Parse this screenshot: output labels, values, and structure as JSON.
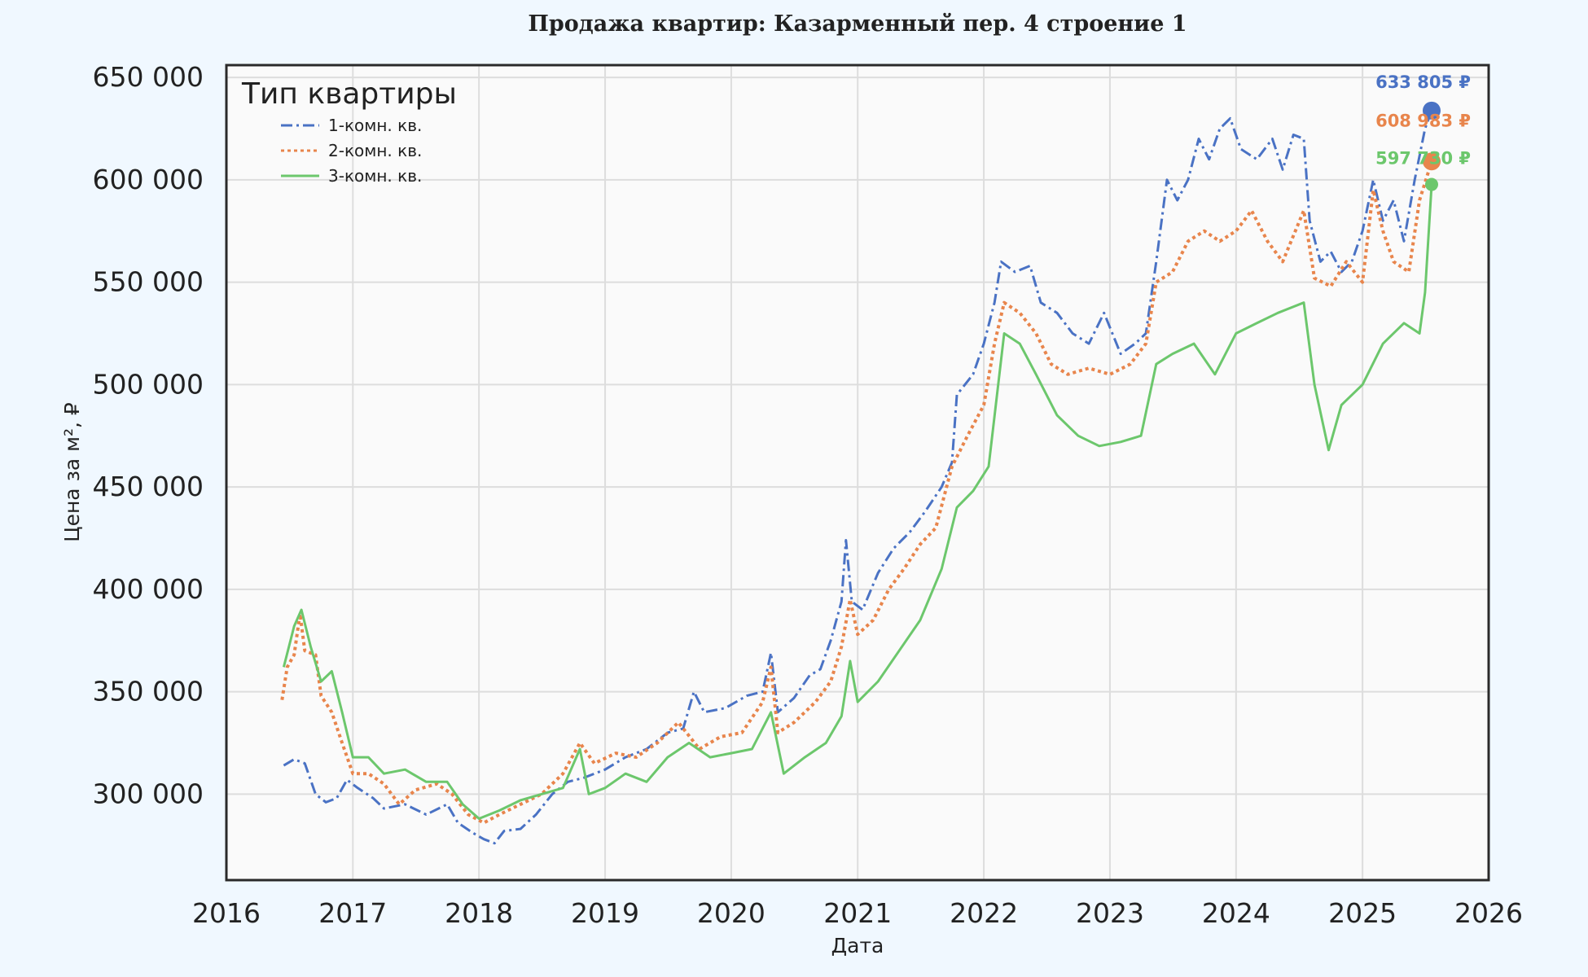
{
  "chart_data": {
    "type": "line",
    "title": "Продажа квартир: Казарменный пер. 4 строение 1",
    "xlabel": "Дата",
    "ylabel": "Цена за м², ₽",
    "x_ticks": [
      "2016",
      "2017",
      "2018",
      "2019",
      "2020",
      "2021",
      "2022",
      "2023",
      "2024",
      "2025",
      "2026"
    ],
    "y_ticks": [
      "300 000",
      "350 000",
      "400 000",
      "450 000",
      "500 000",
      "550 000",
      "600 000",
      "650 000"
    ],
    "xlim": [
      "2016-01-01",
      "2026-01-01"
    ],
    "ylim": [
      258000,
      656000
    ],
    "grid": true,
    "legend": {
      "title": "Тип квартиры",
      "placement": "top-left"
    },
    "series": [
      {
        "name": "1-комн. кв.",
        "color": "#4a72c4",
        "dash": "dashdot",
        "end_label": "633 805 ₽",
        "end_value": 633805,
        "points": [
          [
            "2016-06-15",
            314000
          ],
          [
            "2016-07-15",
            317000
          ],
          [
            "2016-08-15",
            315000
          ],
          [
            "2016-09-15",
            300000
          ],
          [
            "2016-10-15",
            296000
          ],
          [
            "2016-11-15",
            298000
          ],
          [
            "2016-12-15",
            307000
          ],
          [
            "2017-01-15",
            303000
          ],
          [
            "2017-03-01",
            298000
          ],
          [
            "2017-04-01",
            293000
          ],
          [
            "2017-06-01",
            295000
          ],
          [
            "2017-08-01",
            290000
          ],
          [
            "2017-10-01",
            295000
          ],
          [
            "2017-11-01",
            286000
          ],
          [
            "2017-12-15",
            281000
          ],
          [
            "2018-01-15",
            278000
          ],
          [
            "2018-02-15",
            276000
          ],
          [
            "2018-03-15",
            282000
          ],
          [
            "2018-05-01",
            283000
          ],
          [
            "2018-06-15",
            290000
          ],
          [
            "2018-08-01",
            300000
          ],
          [
            "2018-09-15",
            306000
          ],
          [
            "2018-11-01",
            308000
          ],
          [
            "2019-01-01",
            312000
          ],
          [
            "2019-03-01",
            318000
          ],
          [
            "2019-05-01",
            322000
          ],
          [
            "2019-07-01",
            330000
          ],
          [
            "2019-08-15",
            332000
          ],
          [
            "2019-09-15",
            350000
          ],
          [
            "2019-10-15",
            340000
          ],
          [
            "2019-12-15",
            342000
          ],
          [
            "2020-02-15",
            348000
          ],
          [
            "2020-04-01",
            350000
          ],
          [
            "2020-04-25",
            369000
          ],
          [
            "2020-05-15",
            340000
          ],
          [
            "2020-07-01",
            347000
          ],
          [
            "2020-08-15",
            358000
          ],
          [
            "2020-09-15",
            361000
          ],
          [
            "2020-10-15",
            375000
          ],
          [
            "2020-11-15",
            394000
          ],
          [
            "2020-11-28",
            424000
          ],
          [
            "2020-12-15",
            394000
          ],
          [
            "2021-01-15",
            390000
          ],
          [
            "2021-03-01",
            408000
          ],
          [
            "2021-04-15",
            420000
          ],
          [
            "2021-06-01",
            428000
          ],
          [
            "2021-07-15",
            438000
          ],
          [
            "2021-09-01",
            450000
          ],
          [
            "2021-10-01",
            462000
          ],
          [
            "2021-10-15",
            495000
          ],
          [
            "2021-12-01",
            505000
          ],
          [
            "2022-01-01",
            520000
          ],
          [
            "2022-02-01",
            540000
          ],
          [
            "2022-02-20",
            560000
          ],
          [
            "2022-04-01",
            555000
          ],
          [
            "2022-05-15",
            558000
          ],
          [
            "2022-06-15",
            540000
          ],
          [
            "2022-08-01",
            535000
          ],
          [
            "2022-09-15",
            525000
          ],
          [
            "2022-11-01",
            520000
          ],
          [
            "2022-12-15",
            535000
          ],
          [
            "2023-02-01",
            515000
          ],
          [
            "2023-03-15",
            520000
          ],
          [
            "2023-04-15",
            525000
          ],
          [
            "2023-05-15",
            560000
          ],
          [
            "2023-06-15",
            600000
          ],
          [
            "2023-07-15",
            590000
          ],
          [
            "2023-08-15",
            600000
          ],
          [
            "2023-09-15",
            620000
          ],
          [
            "2023-10-15",
            610000
          ],
          [
            "2023-11-15",
            625000
          ],
          [
            "2023-12-15",
            630000
          ],
          [
            "2024-01-15",
            615000
          ],
          [
            "2024-03-01",
            610000
          ],
          [
            "2024-04-15",
            620000
          ],
          [
            "2024-05-15",
            605000
          ],
          [
            "2024-06-15",
            622000
          ],
          [
            "2024-07-15",
            620000
          ],
          [
            "2024-08-01",
            580000
          ],
          [
            "2024-09-01",
            560000
          ],
          [
            "2024-10-01",
            565000
          ],
          [
            "2024-11-01",
            555000
          ],
          [
            "2024-12-01",
            560000
          ],
          [
            "2025-01-01",
            575000
          ],
          [
            "2025-02-01",
            600000
          ],
          [
            "2025-03-01",
            580000
          ],
          [
            "2025-04-01",
            590000
          ],
          [
            "2025-05-01",
            570000
          ],
          [
            "2025-06-01",
            600000
          ],
          [
            "2025-07-01",
            625000
          ],
          [
            "2025-07-20",
            633805
          ]
        ]
      },
      {
        "name": "2-комн. кв.",
        "color": "#e8854c",
        "dash": "dotmarker",
        "end_label": "608 983 ₽",
        "end_value": 608983,
        "points": [
          [
            "2016-06-10",
            346000
          ],
          [
            "2016-06-25",
            362000
          ],
          [
            "2016-07-15",
            368000
          ],
          [
            "2016-08-01",
            388000
          ],
          [
            "2016-08-15",
            370000
          ],
          [
            "2016-09-15",
            368000
          ],
          [
            "2016-10-01",
            348000
          ],
          [
            "2016-11-01",
            340000
          ],
          [
            "2016-12-01",
            325000
          ],
          [
            "2017-01-01",
            310000
          ],
          [
            "2017-02-15",
            310000
          ],
          [
            "2017-04-01",
            305000
          ],
          [
            "2017-05-15",
            295000
          ],
          [
            "2017-07-01",
            302000
          ],
          [
            "2017-09-01",
            305000
          ],
          [
            "2017-10-15",
            300000
          ],
          [
            "2017-12-01",
            290000
          ],
          [
            "2018-01-15",
            286000
          ],
          [
            "2018-03-01",
            290000
          ],
          [
            "2018-05-01",
            295000
          ],
          [
            "2018-07-01",
            300000
          ],
          [
            "2018-09-01",
            310000
          ],
          [
            "2018-10-20",
            325000
          ],
          [
            "2018-12-01",
            315000
          ],
          [
            "2019-02-01",
            320000
          ],
          [
            "2019-04-01",
            318000
          ],
          [
            "2019-06-01",
            325000
          ],
          [
            "2019-08-01",
            335000
          ],
          [
            "2019-10-01",
            322000
          ],
          [
            "2019-12-01",
            328000
          ],
          [
            "2020-02-01",
            330000
          ],
          [
            "2020-04-01",
            345000
          ],
          [
            "2020-04-25",
            362000
          ],
          [
            "2020-05-15",
            330000
          ],
          [
            "2020-07-01",
            335000
          ],
          [
            "2020-09-01",
            345000
          ],
          [
            "2020-10-15",
            355000
          ],
          [
            "2020-11-15",
            372000
          ],
          [
            "2020-12-10",
            395000
          ],
          [
            "2021-01-01",
            378000
          ],
          [
            "2021-02-15",
            385000
          ],
          [
            "2021-04-01",
            400000
          ],
          [
            "2021-05-15",
            410000
          ],
          [
            "2021-07-01",
            422000
          ],
          [
            "2021-08-15",
            430000
          ],
          [
            "2021-10-01",
            460000
          ],
          [
            "2021-11-15",
            475000
          ],
          [
            "2022-01-01",
            490000
          ],
          [
            "2022-02-01",
            520000
          ],
          [
            "2022-03-01",
            540000
          ],
          [
            "2022-04-15",
            535000
          ],
          [
            "2022-06-01",
            525000
          ],
          [
            "2022-07-15",
            510000
          ],
          [
            "2022-09-01",
            505000
          ],
          [
            "2022-11-01",
            508000
          ],
          [
            "2023-01-01",
            505000
          ],
          [
            "2023-03-01",
            510000
          ],
          [
            "2023-04-15",
            520000
          ],
          [
            "2023-05-15",
            550000
          ],
          [
            "2023-07-01",
            555000
          ],
          [
            "2023-08-15",
            570000
          ],
          [
            "2023-10-01",
            575000
          ],
          [
            "2023-11-15",
            570000
          ],
          [
            "2024-01-01",
            575000
          ],
          [
            "2024-02-15",
            585000
          ],
          [
            "2024-04-01",
            570000
          ],
          [
            "2024-05-15",
            560000
          ],
          [
            "2024-07-15",
            585000
          ],
          [
            "2024-08-15",
            552000
          ],
          [
            "2024-10-01",
            548000
          ],
          [
            "2024-11-15",
            560000
          ],
          [
            "2025-01-01",
            550000
          ],
          [
            "2025-02-01",
            595000
          ],
          [
            "2025-03-01",
            575000
          ],
          [
            "2025-04-01",
            560000
          ],
          [
            "2025-05-15",
            555000
          ],
          [
            "2025-06-15",
            590000
          ],
          [
            "2025-07-20",
            608983
          ]
        ]
      },
      {
        "name": "3-комн. кв.",
        "color": "#6cc76c",
        "dash": "solid",
        "end_label": "597 730 ₽",
        "end_value": 597730,
        "points": [
          [
            "2016-06-15",
            362000
          ],
          [
            "2016-07-15",
            382000
          ],
          [
            "2016-08-05",
            390000
          ],
          [
            "2016-09-01",
            372000
          ],
          [
            "2016-10-01",
            355000
          ],
          [
            "2016-11-01",
            360000
          ],
          [
            "2016-12-01",
            340000
          ],
          [
            "2017-01-01",
            318000
          ],
          [
            "2017-02-15",
            318000
          ],
          [
            "2017-04-01",
            310000
          ],
          [
            "2017-06-01",
            312000
          ],
          [
            "2017-08-01",
            306000
          ],
          [
            "2017-10-01",
            306000
          ],
          [
            "2017-11-15",
            295000
          ],
          [
            "2018-01-01",
            288000
          ],
          [
            "2018-03-01",
            292000
          ],
          [
            "2018-05-01",
            297000
          ],
          [
            "2018-07-01",
            300000
          ],
          [
            "2018-09-01",
            303000
          ],
          [
            "2018-10-20",
            322000
          ],
          [
            "2018-11-15",
            300000
          ],
          [
            "2019-01-01",
            303000
          ],
          [
            "2019-03-01",
            310000
          ],
          [
            "2019-05-01",
            306000
          ],
          [
            "2019-07-01",
            318000
          ],
          [
            "2019-09-01",
            325000
          ],
          [
            "2019-11-01",
            318000
          ],
          [
            "2020-01-01",
            320000
          ],
          [
            "2020-03-01",
            322000
          ],
          [
            "2020-04-25",
            340000
          ],
          [
            "2020-06-01",
            310000
          ],
          [
            "2020-08-01",
            318000
          ],
          [
            "2020-10-01",
            325000
          ],
          [
            "2020-11-15",
            338000
          ],
          [
            "2020-12-10",
            365000
          ],
          [
            "2021-01-01",
            345000
          ],
          [
            "2021-03-01",
            355000
          ],
          [
            "2021-05-01",
            370000
          ],
          [
            "2021-07-01",
            385000
          ],
          [
            "2021-09-01",
            410000
          ],
          [
            "2021-10-15",
            440000
          ],
          [
            "2021-12-01",
            448000
          ],
          [
            "2022-01-15",
            460000
          ],
          [
            "2022-03-01",
            525000
          ],
          [
            "2022-04-15",
            520000
          ],
          [
            "2022-06-01",
            505000
          ],
          [
            "2022-08-01",
            485000
          ],
          [
            "2022-10-01",
            475000
          ],
          [
            "2022-12-01",
            470000
          ],
          [
            "2023-02-01",
            472000
          ],
          [
            "2023-04-01",
            475000
          ],
          [
            "2023-05-15",
            510000
          ],
          [
            "2023-07-01",
            515000
          ],
          [
            "2023-09-01",
            520000
          ],
          [
            "2023-11-01",
            505000
          ],
          [
            "2024-01-01",
            525000
          ],
          [
            "2024-03-01",
            530000
          ],
          [
            "2024-05-01",
            535000
          ],
          [
            "2024-07-15",
            540000
          ],
          [
            "2024-08-15",
            500000
          ],
          [
            "2024-09-25",
            468000
          ],
          [
            "2024-11-01",
            490000
          ],
          [
            "2025-01-01",
            500000
          ],
          [
            "2025-03-01",
            520000
          ],
          [
            "2025-05-01",
            530000
          ],
          [
            "2025-06-15",
            525000
          ],
          [
            "2025-07-01",
            545000
          ],
          [
            "2025-07-20",
            597730
          ]
        ]
      }
    ]
  }
}
